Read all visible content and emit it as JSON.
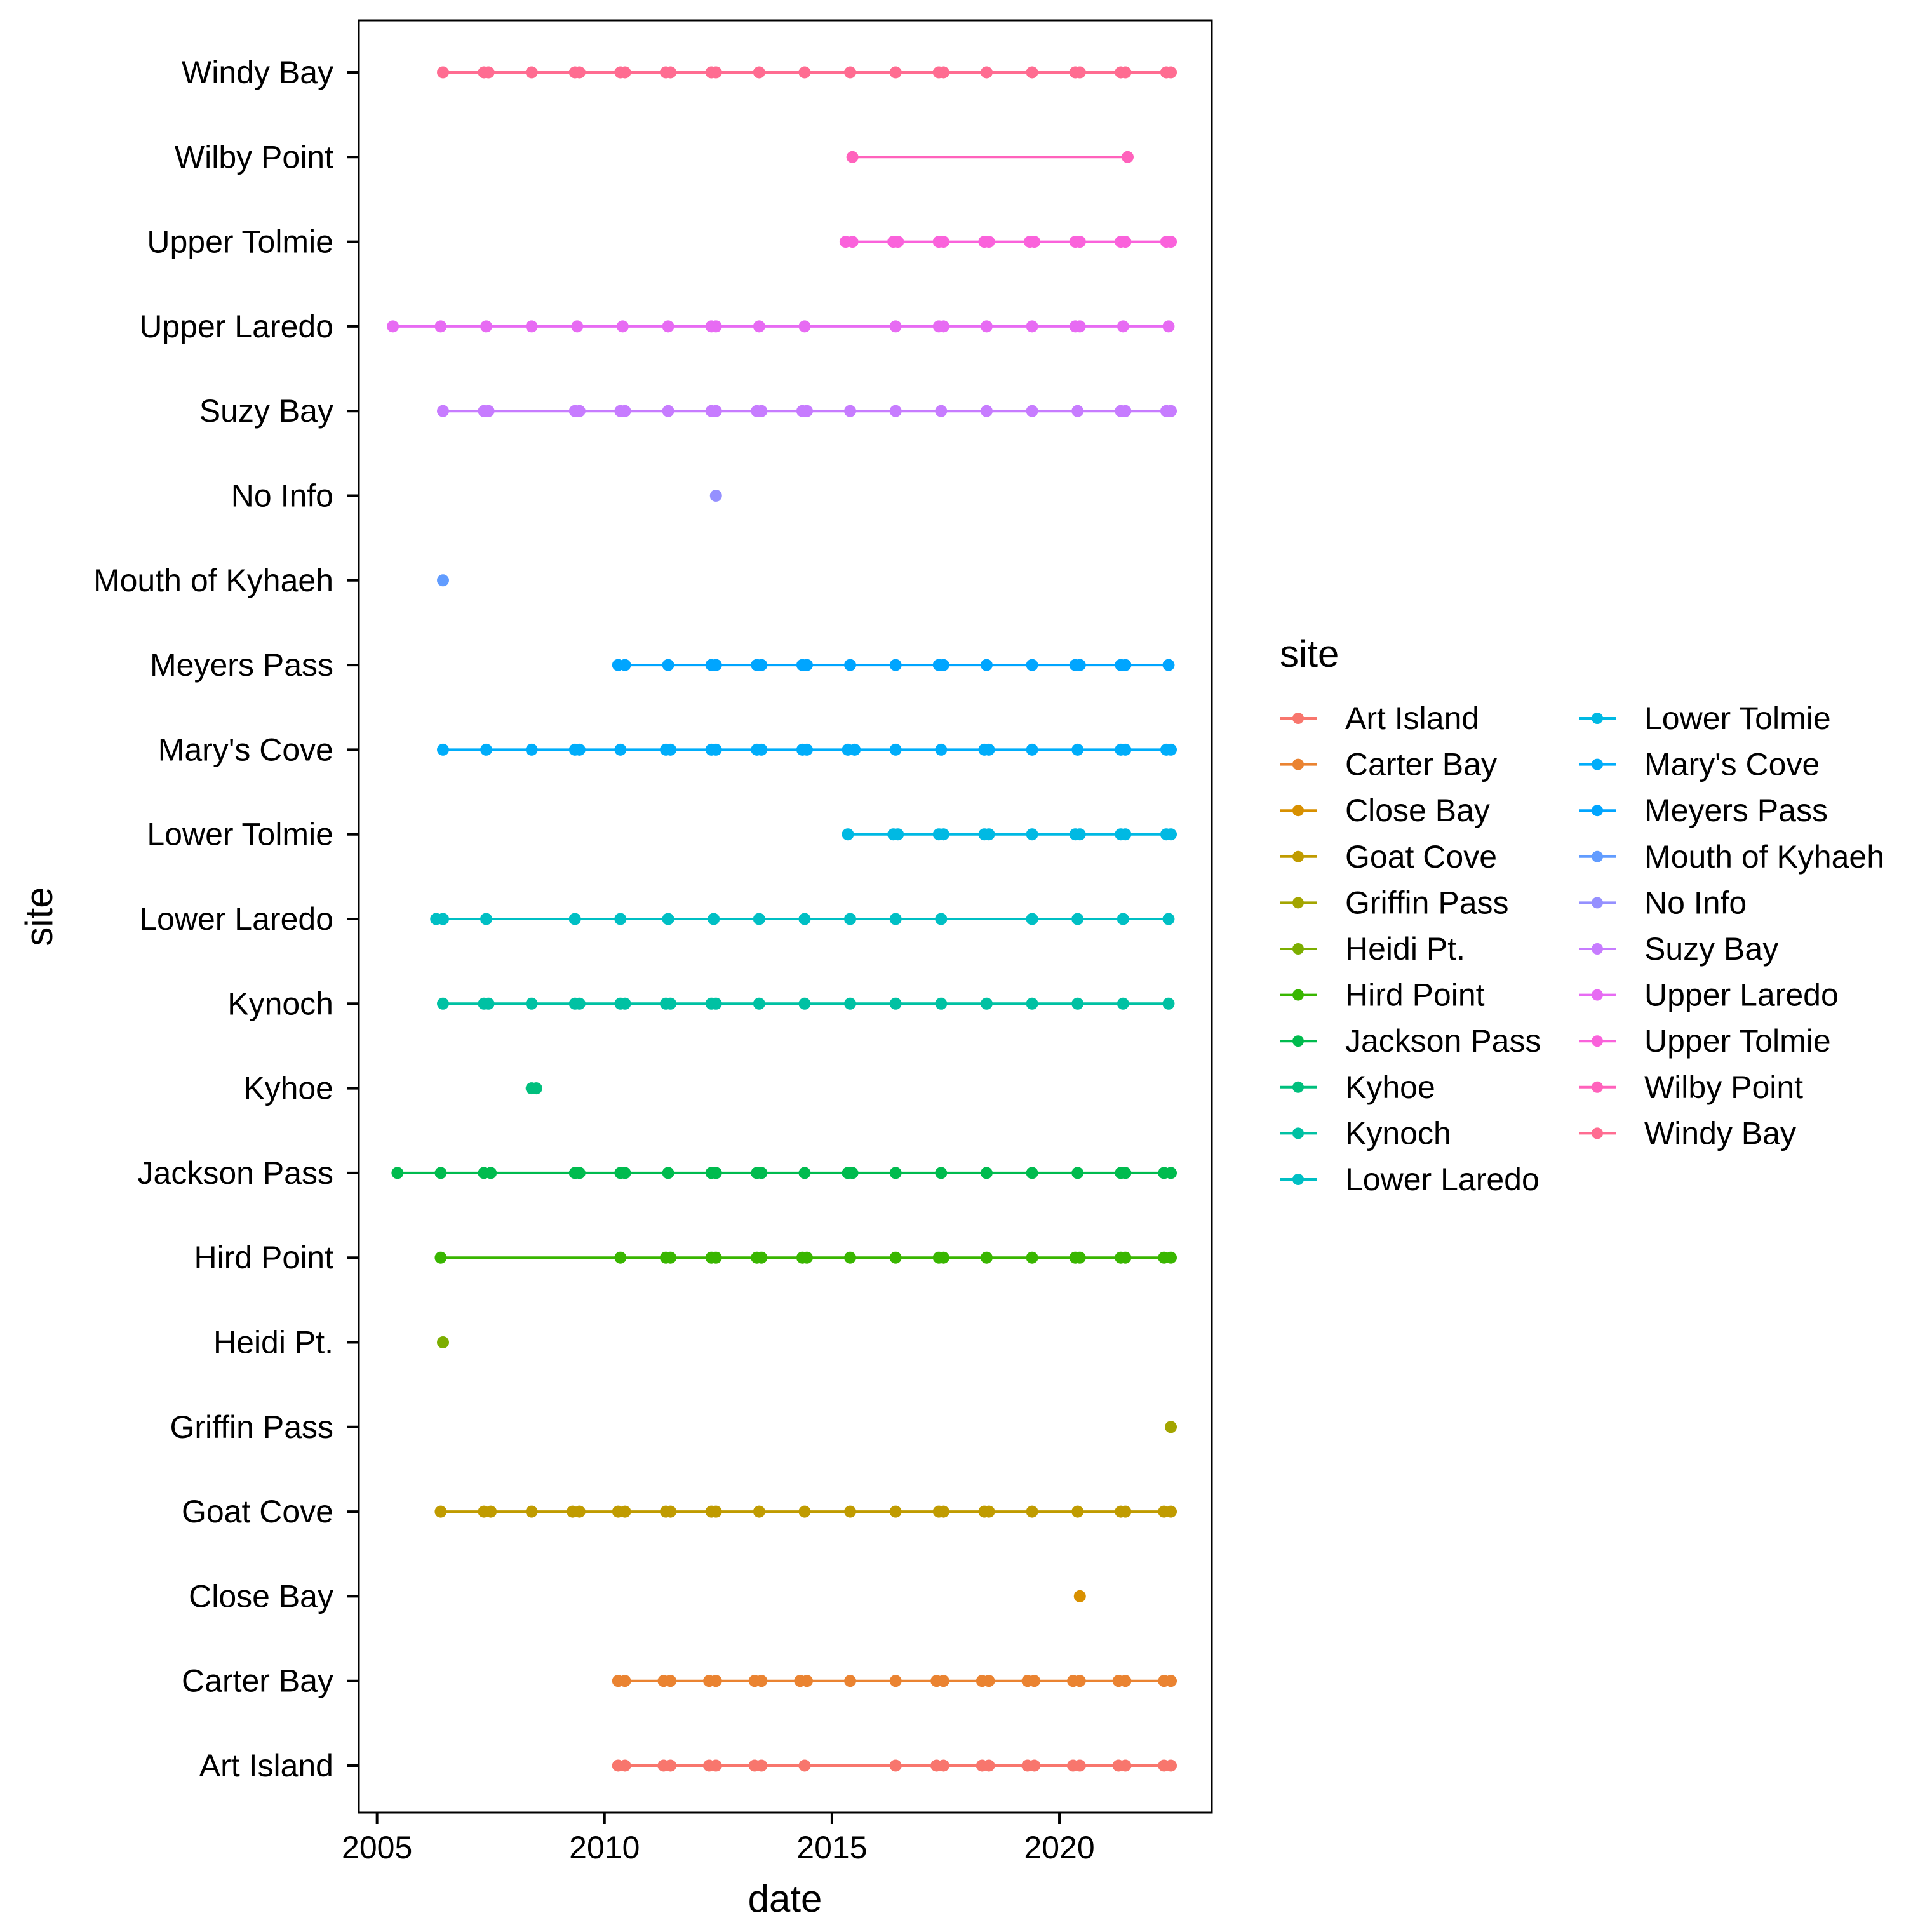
{
  "chart_data": {
    "type": "scatter",
    "xlabel": "date",
    "ylabel": "site",
    "x_ticks": [
      2005,
      2010,
      2015,
      2020
    ],
    "xlim": [
      2004.6,
      2023.35
    ],
    "grid": false,
    "legend": {
      "title": "site",
      "position": "right",
      "columns": 2
    },
    "categories": [
      "Art Island",
      "Carter Bay",
      "Close Bay",
      "Goat Cove",
      "Griffin Pass",
      "Heidi Pt.",
      "Hird Point",
      "Jackson Pass",
      "Kyhoe",
      "Kynoch",
      "Lower Laredo",
      "Lower Tolmie",
      "Mary's Cove",
      "Meyers Pass",
      "Mouth of Kyhaeh",
      "No Info",
      "Suzy Bay",
      "Upper Laredo",
      "Upper Tolmie",
      "Wilby Point",
      "Windy Bay"
    ],
    "series": [
      {
        "name": "Art Island",
        "color": "#F8766D",
        "x": [
          2010.3,
          2010.45,
          2011.3,
          2011.45,
          2012.3,
          2012.45,
          2013.3,
          2013.45,
          2014.4,
          2016.4,
          2017.3,
          2017.45,
          2018.3,
          2018.45,
          2019.3,
          2019.45,
          2020.3,
          2020.45,
          2021.3,
          2021.45,
          2022.3,
          2022.45
        ]
      },
      {
        "name": "Carter Bay",
        "color": "#EA8331",
        "x": [
          2010.3,
          2010.45,
          2011.3,
          2011.45,
          2012.3,
          2012.45,
          2013.3,
          2013.45,
          2014.3,
          2014.45,
          2015.4,
          2016.4,
          2017.3,
          2017.45,
          2018.3,
          2018.45,
          2019.3,
          2019.45,
          2020.3,
          2020.45,
          2021.3,
          2021.45,
          2022.3,
          2022.45
        ]
      },
      {
        "name": "Close Bay",
        "color": "#D89000",
        "x": [
          2020.45
        ]
      },
      {
        "name": "Goat Cove",
        "color": "#C09B00",
        "x": [
          2006.4,
          2007.35,
          2007.5,
          2008.4,
          2009.3,
          2009.45,
          2010.3,
          2010.45,
          2011.35,
          2011.45,
          2012.35,
          2012.45,
          2013.4,
          2014.4,
          2015.4,
          2016.4,
          2017.35,
          2017.45,
          2018.35,
          2018.45,
          2019.4,
          2020.4,
          2021.35,
          2021.45,
          2022.3,
          2022.45
        ]
      },
      {
        "name": "Griffin Pass",
        "color": "#A3A500",
        "x": [
          2022.45
        ]
      },
      {
        "name": "Heidi Pt.",
        "color": "#7CAE00",
        "x": [
          2006.45
        ]
      },
      {
        "name": "Hird Point",
        "color": "#39B600",
        "x": [
          2006.4,
          2010.35,
          2011.35,
          2011.45,
          2012.35,
          2012.45,
          2013.35,
          2013.45,
          2014.35,
          2014.45,
          2015.4,
          2016.4,
          2017.35,
          2017.45,
          2018.4,
          2019.4,
          2020.35,
          2020.45,
          2021.35,
          2021.45,
          2022.3,
          2022.45
        ]
      },
      {
        "name": "Jackson Pass",
        "color": "#00BB4E",
        "x": [
          2005.45,
          2006.4,
          2007.35,
          2007.5,
          2009.35,
          2009.45,
          2010.35,
          2010.45,
          2011.4,
          2012.35,
          2012.45,
          2013.35,
          2013.45,
          2014.4,
          2015.35,
          2015.45,
          2016.4,
          2017.4,
          2018.4,
          2019.4,
          2020.4,
          2021.35,
          2021.45,
          2022.3,
          2022.45
        ]
      },
      {
        "name": "Kyhoe",
        "color": "#00BF7D",
        "x": [
          2008.4,
          2008.5
        ]
      },
      {
        "name": "Kynoch",
        "color": "#00C1A3",
        "x": [
          2006.45,
          2007.35,
          2007.45,
          2008.4,
          2009.35,
          2009.45,
          2010.35,
          2010.45,
          2011.35,
          2011.45,
          2012.35,
          2012.45,
          2013.4,
          2014.4,
          2015.4,
          2016.4,
          2017.4,
          2018.4,
          2019.4,
          2020.4,
          2021.4,
          2022.4
        ]
      },
      {
        "name": "Lower Laredo",
        "color": "#00BFC4",
        "x": [
          2006.3,
          2006.45,
          2007.4,
          2009.35,
          2010.35,
          2011.4,
          2012.4,
          2013.4,
          2014.4,
          2015.4,
          2016.4,
          2017.4,
          2019.4,
          2020.4,
          2021.4,
          2022.4
        ]
      },
      {
        "name": "Lower Tolmie",
        "color": "#00B9E3",
        "x": [
          2015.35,
          2016.35,
          2016.45,
          2017.35,
          2017.45,
          2018.35,
          2018.45,
          2019.4,
          2020.35,
          2020.45,
          2021.35,
          2021.45,
          2022.35,
          2022.45
        ]
      },
      {
        "name": "Mary's Cove",
        "color": "#00ADFA",
        "x": [
          2006.45,
          2007.4,
          2008.4,
          2009.35,
          2009.45,
          2010.35,
          2011.35,
          2011.45,
          2012.35,
          2012.45,
          2013.35,
          2013.45,
          2014.35,
          2014.45,
          2015.35,
          2015.5,
          2016.4,
          2017.4,
          2018.35,
          2018.45,
          2019.4,
          2020.4,
          2021.35,
          2021.45,
          2022.35,
          2022.45
        ]
      },
      {
        "name": "Meyers Pass",
        "color": "#00A5FF",
        "x": [
          2010.3,
          2010.45,
          2011.4,
          2012.35,
          2012.45,
          2013.35,
          2013.45,
          2014.35,
          2014.45,
          2015.4,
          2016.4,
          2017.35,
          2017.45,
          2018.4,
          2019.4,
          2020.35,
          2020.45,
          2021.35,
          2021.45,
          2022.4
        ]
      },
      {
        "name": "Mouth of Kyhaeh",
        "color": "#619CFF",
        "x": [
          2006.45
        ]
      },
      {
        "name": "No Info",
        "color": "#9590FF",
        "x": [
          2012.45
        ]
      },
      {
        "name": "Suzy Bay",
        "color": "#C77CFF",
        "x": [
          2006.45,
          2007.35,
          2007.45,
          2009.35,
          2009.45,
          2010.35,
          2010.45,
          2011.4,
          2012.35,
          2012.45,
          2013.35,
          2013.45,
          2014.35,
          2014.45,
          2015.4,
          2016.4,
          2017.4,
          2018.4,
          2019.4,
          2020.4,
          2021.35,
          2021.45,
          2022.35,
          2022.45
        ]
      },
      {
        "name": "Upper Laredo",
        "color": "#E76BF3",
        "x": [
          2005.35,
          2006.4,
          2007.4,
          2008.4,
          2009.4,
          2010.4,
          2011.4,
          2012.35,
          2012.45,
          2013.4,
          2014.4,
          2016.4,
          2017.35,
          2017.45,
          2018.4,
          2019.4,
          2020.35,
          2020.45,
          2021.4,
          2022.4
        ]
      },
      {
        "name": "Upper Tolmie",
        "color": "#FA62DB",
        "x": [
          2015.3,
          2015.45,
          2016.35,
          2016.45,
          2017.35,
          2017.45,
          2018.35,
          2018.45,
          2019.35,
          2019.45,
          2020.35,
          2020.45,
          2021.35,
          2021.45,
          2022.35,
          2022.45
        ]
      },
      {
        "name": "Wilby Point",
        "color": "#FF62BC",
        "x": [
          2015.45,
          2021.5
        ]
      },
      {
        "name": "Windy Bay",
        "color": "#FF6C91",
        "x": [
          2006.45,
          2007.35,
          2007.45,
          2008.4,
          2009.35,
          2009.45,
          2010.35,
          2010.45,
          2011.35,
          2011.45,
          2012.35,
          2012.45,
          2013.4,
          2014.4,
          2015.4,
          2016.4,
          2017.35,
          2017.45,
          2018.4,
          2019.4,
          2020.35,
          2020.45,
          2021.35,
          2021.45,
          2022.35,
          2022.45
        ]
      }
    ]
  }
}
